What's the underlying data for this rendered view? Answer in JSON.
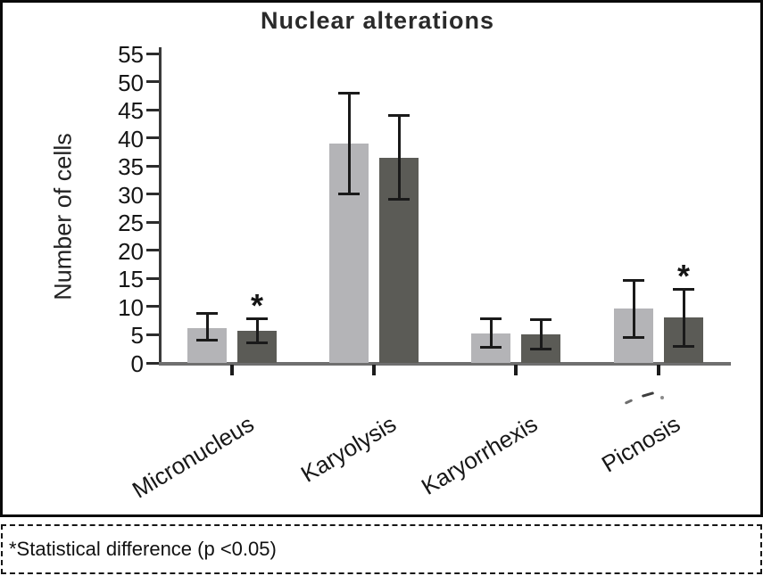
{
  "chart_data": {
    "type": "bar",
    "title": "Nuclear alterations",
    "ylabel": "Number of cells",
    "xlabel": "",
    "ylim": [
      0,
      55
    ],
    "yticks": [
      0,
      5,
      10,
      15,
      20,
      25,
      30,
      35,
      40,
      45,
      50,
      55
    ],
    "grid": false,
    "legend_position": "none",
    "categories": [
      "Micronucleus",
      "Karyolysis",
      "Karyorrhexis",
      "Picnosis"
    ],
    "series": [
      {
        "name": "light-gray-bars",
        "color": "#b4b4b7",
        "values": [
          6.2,
          39.0,
          5.2,
          9.6
        ],
        "err_low": [
          4.0,
          30.0,
          2.7,
          4.4
        ],
        "err_high": [
          8.8,
          48.0,
          7.9,
          14.7
        ],
        "significant": [
          false,
          false,
          false,
          false
        ]
      },
      {
        "name": "dark-gray-bars",
        "color": "#5b5b56",
        "values": [
          5.7,
          36.4,
          5.1,
          8.1
        ],
        "err_low": [
          3.5,
          29.0,
          2.3,
          2.9
        ],
        "err_high": [
          8.0,
          44.0,
          7.8,
          13.2
        ],
        "significant": [
          true,
          false,
          false,
          true
        ]
      }
    ],
    "significance_marker": "*",
    "error_bar_color": "#1a1a1a"
  },
  "footer": {
    "note": "*Statistical difference (p <0.05)"
  }
}
